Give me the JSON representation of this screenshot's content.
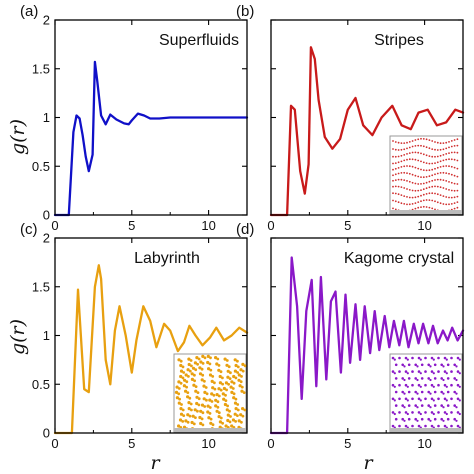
{
  "figure": {
    "ylabel": "g(r)",
    "xlabel": "r"
  },
  "chart_data": [
    {
      "panel": "(a)",
      "title": "Superfluids",
      "type": "line",
      "color": "#1010c8",
      "xlim": [
        0,
        12.5
      ],
      "ylim": [
        0,
        2
      ],
      "xticks": [
        "0",
        "5",
        "10"
      ],
      "yticks": [
        "0",
        "0.5",
        "1",
        "1.5",
        "2"
      ],
      "inset": null,
      "series": [
        {
          "x": [
            0.0,
            0.5,
            0.9,
            1.2,
            1.4,
            1.6,
            1.8,
            2.0,
            2.2,
            2.45,
            2.6,
            2.75,
            3.0,
            3.3,
            3.6,
            4.0,
            4.5,
            4.8,
            5.0,
            5.4,
            5.8,
            6.2,
            6.8,
            7.5,
            8.5,
            9.5,
            10.5,
            11.5,
            12.5
          ],
          "y": [
            0.0,
            0.0,
            0.0,
            0.85,
            1.02,
            0.99,
            0.82,
            0.6,
            0.45,
            0.62,
            1.57,
            1.38,
            1.02,
            0.93,
            1.03,
            0.98,
            0.94,
            0.93,
            0.97,
            1.04,
            1.02,
            0.99,
            0.99,
            1.0,
            1.0,
            1.0,
            1.0,
            1.0,
            1.0
          ]
        }
      ]
    },
    {
      "panel": "(b)",
      "title": "Stripes",
      "type": "line",
      "color": "#c81a1a",
      "xlim": [
        0,
        12.5
      ],
      "ylim": [
        0,
        2
      ],
      "xticks": [
        "0",
        "5",
        "10"
      ],
      "yticks": [],
      "inset": {
        "kind": "stripes",
        "color": "#d03030"
      },
      "series": [
        {
          "x": [
            0.0,
            1.0,
            1.05,
            1.3,
            1.55,
            1.9,
            2.2,
            2.45,
            2.6,
            2.85,
            3.1,
            3.5,
            4.0,
            4.5,
            5.0,
            5.5,
            6.0,
            6.6,
            7.2,
            7.9,
            8.5,
            9.1,
            9.6,
            10.2,
            10.8,
            11.4,
            12.0,
            12.5
          ],
          "y": [
            0.0,
            0.0,
            0.0,
            1.12,
            1.08,
            0.45,
            0.22,
            0.52,
            1.72,
            1.6,
            1.18,
            0.8,
            0.68,
            0.78,
            1.08,
            1.2,
            0.92,
            0.82,
            1.0,
            1.12,
            0.92,
            0.88,
            1.05,
            1.08,
            0.92,
            0.95,
            1.08,
            1.05
          ]
        }
      ]
    },
    {
      "panel": "(c)",
      "title": "Labyrinth",
      "type": "line",
      "color": "#e8a010",
      "xlim": [
        0,
        12.5
      ],
      "ylim": [
        0,
        2
      ],
      "xticks": [
        "0",
        "5",
        "10"
      ],
      "yticks": [
        "0",
        "0.5",
        "1",
        "1.5",
        "2"
      ],
      "inset": {
        "kind": "labyrinth",
        "color": "#e8a010"
      },
      "series": [
        {
          "x": [
            0.0,
            0.7,
            1.1,
            1.5,
            1.9,
            2.2,
            2.6,
            2.85,
            3.0,
            3.3,
            3.6,
            3.9,
            4.2,
            4.6,
            5.0,
            5.3,
            5.75,
            6.2,
            6.6,
            7.1,
            7.5,
            8.0,
            8.4,
            8.75,
            9.15,
            9.6,
            10.1,
            10.5,
            11.0,
            11.5,
            12.0,
            12.5
          ],
          "y": [
            0.0,
            0.0,
            0.0,
            1.47,
            0.45,
            0.42,
            1.5,
            1.72,
            1.58,
            0.75,
            0.5,
            1.05,
            1.3,
            1.0,
            0.62,
            0.95,
            1.3,
            1.15,
            0.88,
            1.12,
            1.05,
            0.84,
            0.93,
            1.1,
            1.0,
            0.9,
            0.98,
            1.08,
            0.95,
            1.0,
            1.08,
            1.03
          ]
        }
      ]
    },
    {
      "panel": "(d)",
      "title": "Kagome crystal",
      "type": "line",
      "color": "#8a18c8",
      "xlim": [
        0,
        12.5
      ],
      "ylim": [
        0,
        2
      ],
      "xticks": [
        "0",
        "5",
        "10"
      ],
      "yticks": [],
      "inset": {
        "kind": "kagome",
        "color": "#8a18c8"
      },
      "series": [
        {
          "x": [
            0.0,
            0.9,
            1.05,
            1.35,
            1.7,
            2.0,
            2.3,
            2.65,
            2.95,
            3.25,
            3.6,
            3.9,
            4.2,
            4.55,
            4.85,
            5.15,
            5.5,
            5.8,
            6.1,
            6.45,
            6.75,
            7.05,
            7.4,
            7.7,
            8.0,
            8.35,
            8.65,
            8.95,
            9.3,
            9.6,
            9.9,
            10.25,
            10.55,
            10.85,
            11.2,
            11.5,
            11.8,
            12.15,
            12.5
          ],
          "y": [
            0.0,
            0.0,
            0.0,
            1.8,
            1.3,
            0.35,
            1.25,
            1.57,
            0.48,
            1.6,
            0.55,
            1.35,
            1.45,
            0.62,
            1.42,
            0.72,
            1.32,
            0.75,
            1.3,
            0.82,
            1.25,
            0.85,
            1.2,
            0.88,
            1.15,
            0.9,
            1.15,
            0.88,
            1.12,
            0.92,
            1.12,
            0.92,
            1.1,
            0.92,
            1.05,
            0.95,
            1.08,
            0.95,
            1.05
          ]
        }
      ]
    }
  ]
}
